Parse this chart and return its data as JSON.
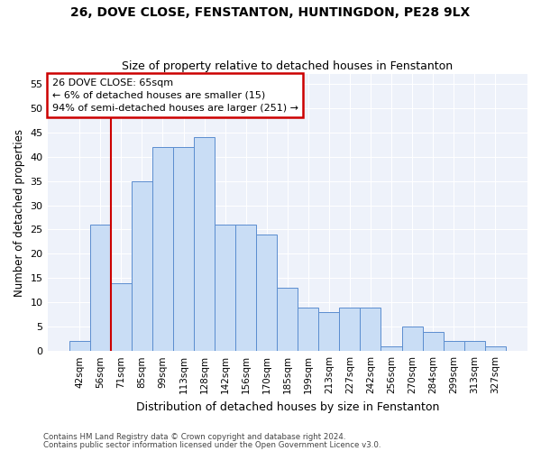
{
  "title1": "26, DOVE CLOSE, FENSTANTON, HUNTINGDON, PE28 9LX",
  "title2": "Size of property relative to detached houses in Fenstanton",
  "xlabel": "Distribution of detached houses by size in Fenstanton",
  "ylabel": "Number of detached properties",
  "categories": [
    "42sqm",
    "56sqm",
    "71sqm",
    "85sqm",
    "99sqm",
    "113sqm",
    "128sqm",
    "142sqm",
    "156sqm",
    "170sqm",
    "185sqm",
    "199sqm",
    "213sqm",
    "227sqm",
    "242sqm",
    "256sqm",
    "270sqm",
    "284sqm",
    "299sqm",
    "313sqm",
    "327sqm"
  ],
  "values": [
    2,
    26,
    14,
    35,
    42,
    42,
    44,
    26,
    26,
    24,
    13,
    9,
    8,
    9,
    9,
    1,
    5,
    4,
    2,
    2,
    1
  ],
  "bar_color": "#c9ddf5",
  "bar_edge_color": "#5b8dcf",
  "vline_color": "#cc0000",
  "vline_pos": 1.5,
  "annotation_text": "26 DOVE CLOSE: 65sqm\n← 6% of detached houses are smaller (15)\n94% of semi-detached houses are larger (251) →",
  "annotation_box_color": "#cc0000",
  "ylim": [
    0,
    57
  ],
  "yticks": [
    0,
    5,
    10,
    15,
    20,
    25,
    30,
    35,
    40,
    45,
    50,
    55
  ],
  "footer1": "Contains HM Land Registry data © Crown copyright and database right 2024.",
  "footer2": "Contains public sector information licensed under the Open Government Licence v3.0.",
  "bg_color": "#eef2fa"
}
